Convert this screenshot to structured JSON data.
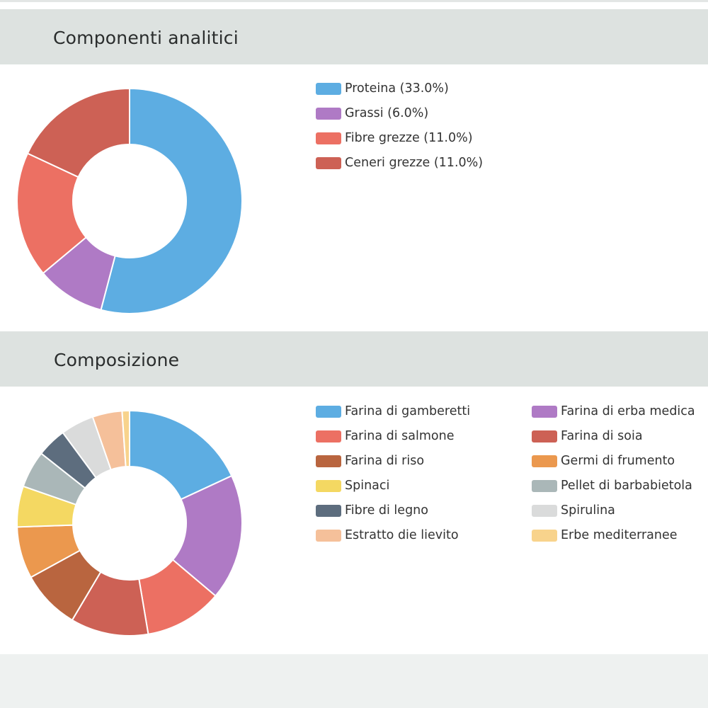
{
  "sections": [
    {
      "title": "Componenti analitici",
      "legend": [
        {
          "label": "Proteina (33.0%)",
          "color": "#5dade2"
        },
        {
          "label": "Grassi (6.0%)",
          "color": "#af7ac5"
        },
        {
          "label": "Fibre grezze (11.0%)",
          "color": "#ec7063"
        },
        {
          "label": "Ceneri grezze (11.0%)",
          "color": "#cd6155"
        }
      ]
    },
    {
      "title": "Composizione",
      "legend": [
        {
          "label": "Farina di gamberetti",
          "color": "#5dade2"
        },
        {
          "label": "Farina di erba medica",
          "color": "#af7ac5"
        },
        {
          "label": "Farina di salmone",
          "color": "#ec7063"
        },
        {
          "label": "Farina di soia",
          "color": "#cd6155"
        },
        {
          "label": "Farina di riso",
          "color": "#b9653f"
        },
        {
          "label": "Germi di frumento",
          "color": "#eb984e"
        },
        {
          "label": "Spinaci",
          "color": "#f4d862"
        },
        {
          "label": "Pellet di barbabietola",
          "color": "#aab7b8"
        },
        {
          "label": "Fibre di legno",
          "color": "#5d6d7e"
        },
        {
          "label": "Spirulina",
          "color": "#dadbdb"
        },
        {
          "label": "Estratto die lievito",
          "color": "#f5c09a"
        },
        {
          "label": "Erbe mediterranee",
          "color": "#f8d38c"
        }
      ]
    }
  ],
  "chart_data": [
    {
      "type": "pie",
      "title": "Componenti analitici",
      "categories": [
        "Proteina",
        "Grassi",
        "Fibre grezze",
        "Ceneri grezze"
      ],
      "values": [
        33.0,
        6.0,
        11.0,
        11.0
      ],
      "colors": [
        "#5dade2",
        "#af7ac5",
        "#ec7063",
        "#cd6155"
      ]
    },
    {
      "type": "pie",
      "title": "Composizione",
      "categories": [
        "Farina di gamberetti",
        "Farina di erba medica",
        "Farina di salmone",
        "Farina di soia",
        "Farina di riso",
        "Germi di frumento",
        "Spinaci",
        "Pellet di barbabietola",
        "Fibre di legno",
        "Spirulina",
        "Estratto die lievito",
        "Erbe mediterranee"
      ],
      "values": [
        17,
        17,
        10.5,
        10.5,
        8,
        7,
        5.5,
        5,
        4,
        4.5,
        4,
        1
      ],
      "colors": [
        "#5dade2",
        "#af7ac5",
        "#ec7063",
        "#cd6155",
        "#b9653f",
        "#eb984e",
        "#f4d862",
        "#aab7b8",
        "#5d6d7e",
        "#dadbdb",
        "#f5c09a",
        "#f8d38c"
      ]
    }
  ]
}
